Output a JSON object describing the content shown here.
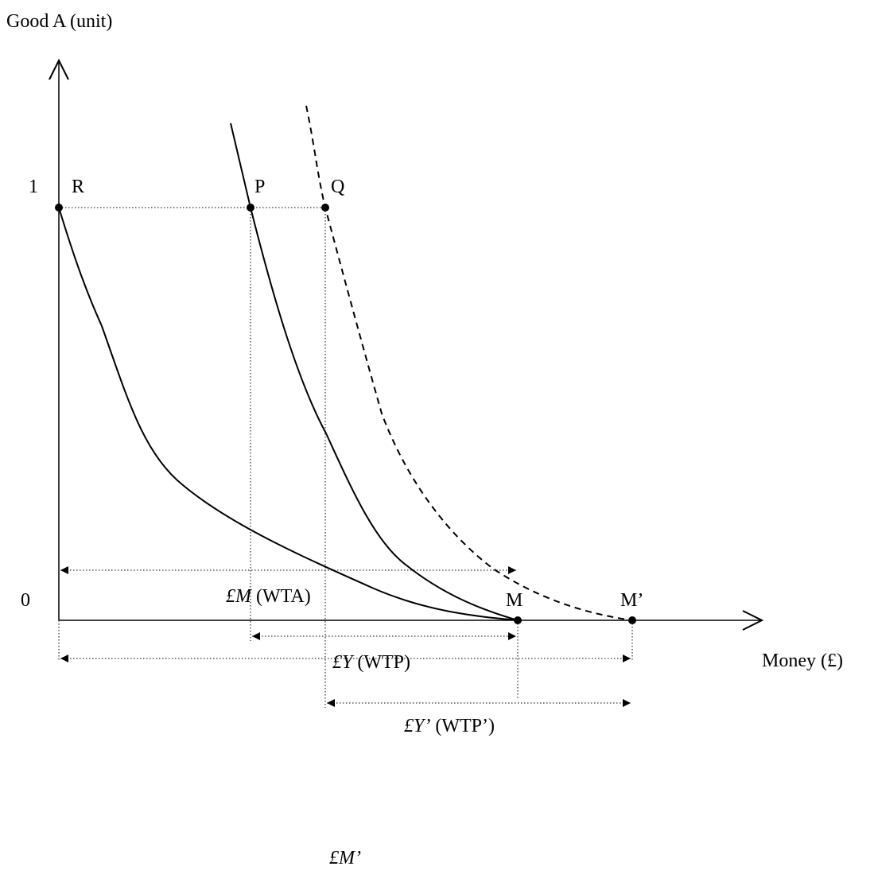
{
  "axes": {
    "y_label": "Good A (unit)",
    "x_label": "Money (£)",
    "y_tick_top": "1",
    "y_tick_origin": "0"
  },
  "points": [
    {
      "label": "R"
    },
    {
      "label": "P"
    },
    {
      "label": "Q"
    },
    {
      "label": "M"
    },
    {
      "label": "M’"
    }
  ],
  "measures": [
    {
      "italic": "£Y",
      "plain": "(WTP)"
    },
    {
      "italic": "£Y’",
      "plain": "(WTP’)"
    },
    {
      "italic": "£M",
      "plain": "(WTA)"
    },
    {
      "italic": "£M’"
    }
  ]
}
